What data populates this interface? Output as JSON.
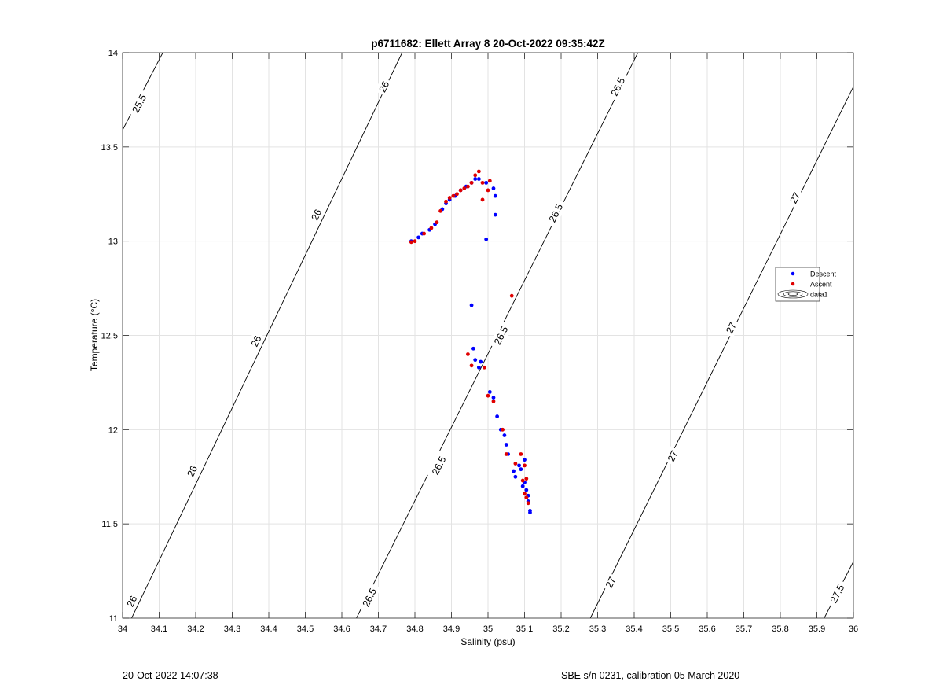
{
  "chart_data": {
    "type": "scatter",
    "title": "p6711682: Ellett Array 8 20-Oct-2022 09:35:42Z",
    "xlabel": "Salinity (psu)",
    "ylabel": "Temperature (°C)",
    "xlim": [
      34,
      36
    ],
    "ylim": [
      11,
      14
    ],
    "xticks": [
      34,
      34.1,
      34.2,
      34.3,
      34.4,
      34.5,
      34.6,
      34.7,
      34.8,
      34.9,
      35,
      35.1,
      35.2,
      35.3,
      35.4,
      35.5,
      35.6,
      35.7,
      35.8,
      35.9,
      36
    ],
    "xtick_labels": [
      "34",
      "34.1",
      "34.2",
      "34.3",
      "34.4",
      "34.5",
      "34.6",
      "34.7",
      "34.8",
      "34.9",
      "35",
      "35.1",
      "35.2",
      "35.3",
      "35.4",
      "35.5",
      "35.6",
      "35.7",
      "35.8",
      "35.9",
      "36"
    ],
    "yticks": [
      11,
      11.5,
      12,
      12.5,
      13,
      13.5,
      14
    ],
    "ytick_labels": [
      "11",
      "11.5",
      "12",
      "12.5",
      "13",
      "13.5",
      "14"
    ],
    "grid": true,
    "legend_position": "right",
    "series": [
      {
        "name": "Descent",
        "color": "#0000ff",
        "x": [
          34.79,
          34.81,
          34.82,
          34.84,
          34.855,
          34.875,
          34.885,
          34.895,
          34.91,
          34.925,
          34.94,
          34.955,
          34.965,
          34.975,
          34.995,
          35.015,
          35.02,
          35.02,
          34.995,
          34.955,
          34.96,
          34.965,
          34.975,
          34.98,
          35.005,
          35.015,
          35.025,
          35.035,
          35.045,
          35.05,
          35.055,
          35.07,
          35.075,
          35.085,
          35.09,
          35.1,
          35.095,
          35.1,
          35.105,
          35.11,
          35.11,
          35.115,
          35.115
        ],
        "y": [
          13.0,
          13.02,
          13.04,
          13.06,
          13.09,
          13.17,
          13.2,
          13.22,
          13.24,
          13.27,
          13.29,
          13.31,
          13.33,
          13.33,
          13.31,
          13.28,
          13.24,
          13.14,
          13.01,
          12.66,
          12.43,
          12.37,
          12.33,
          12.36,
          12.2,
          12.17,
          12.07,
          12.0,
          11.97,
          11.92,
          11.87,
          11.78,
          11.75,
          11.81,
          11.79,
          11.84,
          11.7,
          11.72,
          11.68,
          11.65,
          11.62,
          11.57,
          11.56
        ]
      },
      {
        "name": "Ascent",
        "color": "#e00000",
        "x": [
          34.79,
          34.8,
          34.825,
          34.845,
          34.86,
          34.87,
          34.885,
          34.895,
          34.905,
          34.915,
          34.925,
          34.935,
          34.945,
          34.955,
          34.965,
          34.975,
          34.985,
          35.005,
          35.0,
          34.985,
          35.065,
          34.945,
          34.955,
          34.99,
          35.0,
          35.015,
          35.04,
          35.05,
          35.075,
          35.09,
          35.1,
          35.105,
          35.095,
          35.1,
          35.105,
          35.11
        ],
        "y": [
          12.995,
          13.0,
          13.04,
          13.07,
          13.1,
          13.16,
          13.21,
          13.23,
          13.24,
          13.25,
          13.27,
          13.28,
          13.29,
          13.31,
          13.35,
          13.37,
          13.31,
          13.32,
          13.27,
          13.22,
          12.71,
          12.4,
          12.34,
          12.33,
          12.18,
          12.15,
          12.0,
          11.87,
          11.82,
          11.87,
          11.81,
          11.74,
          11.73,
          11.66,
          11.64,
          11.61
        ]
      }
    ],
    "contours": [
      {
        "label": "25.5",
        "x": [
          34.0,
          34.11
        ],
        "y": [
          13.59,
          14.0
        ]
      },
      {
        "label": "26",
        "x": [
          34.0,
          34.765
        ],
        "y": [
          10.9,
          14.0
        ]
      },
      {
        "label": "26.5",
        "x": [
          34.64,
          35.41
        ],
        "y": [
          11.0,
          14.0
        ]
      },
      {
        "label": "27",
        "x": [
          35.28,
          36.0
        ],
        "y": [
          11.0,
          13.82
        ]
      },
      {
        "label": "27.5",
        "x": [
          35.92,
          36.0
        ],
        "y": [
          11.0,
          11.3
        ]
      }
    ],
    "contour_label_positions": [
      {
        "label": "25.5",
        "x": 34.045,
        "y": 13.73
      },
      {
        "label": "26",
        "x": 34.025,
        "y": 11.09
      },
      {
        "label": "26",
        "x": 34.19,
        "y": 11.78
      },
      {
        "label": "26",
        "x": 34.365,
        "y": 12.47
      },
      {
        "label": "26",
        "x": 34.53,
        "y": 13.14
      },
      {
        "label": "26",
        "x": 34.715,
        "y": 13.82
      },
      {
        "label": "26.5",
        "x": 34.675,
        "y": 11.11
      },
      {
        "label": "26.5",
        "x": 34.865,
        "y": 11.81
      },
      {
        "label": "26.5",
        "x": 35.035,
        "y": 12.5
      },
      {
        "label": "26.5",
        "x": 35.185,
        "y": 13.15
      },
      {
        "label": "26.5",
        "x": 35.355,
        "y": 13.82
      },
      {
        "label": "27",
        "x": 35.335,
        "y": 11.19
      },
      {
        "label": "27",
        "x": 35.505,
        "y": 11.86
      },
      {
        "label": "27",
        "x": 35.665,
        "y": 12.54
      },
      {
        "label": "27",
        "x": 35.84,
        "y": 13.23
      },
      {
        "label": "27.5",
        "x": 35.955,
        "y": 11.13
      }
    ],
    "legend": {
      "entries": [
        "Descent",
        "Ascent",
        "data1"
      ]
    }
  },
  "footer": {
    "left": "20-Oct-2022 14:07:38",
    "right": "SBE s/n 0231, calibration 05 March 2020"
  }
}
